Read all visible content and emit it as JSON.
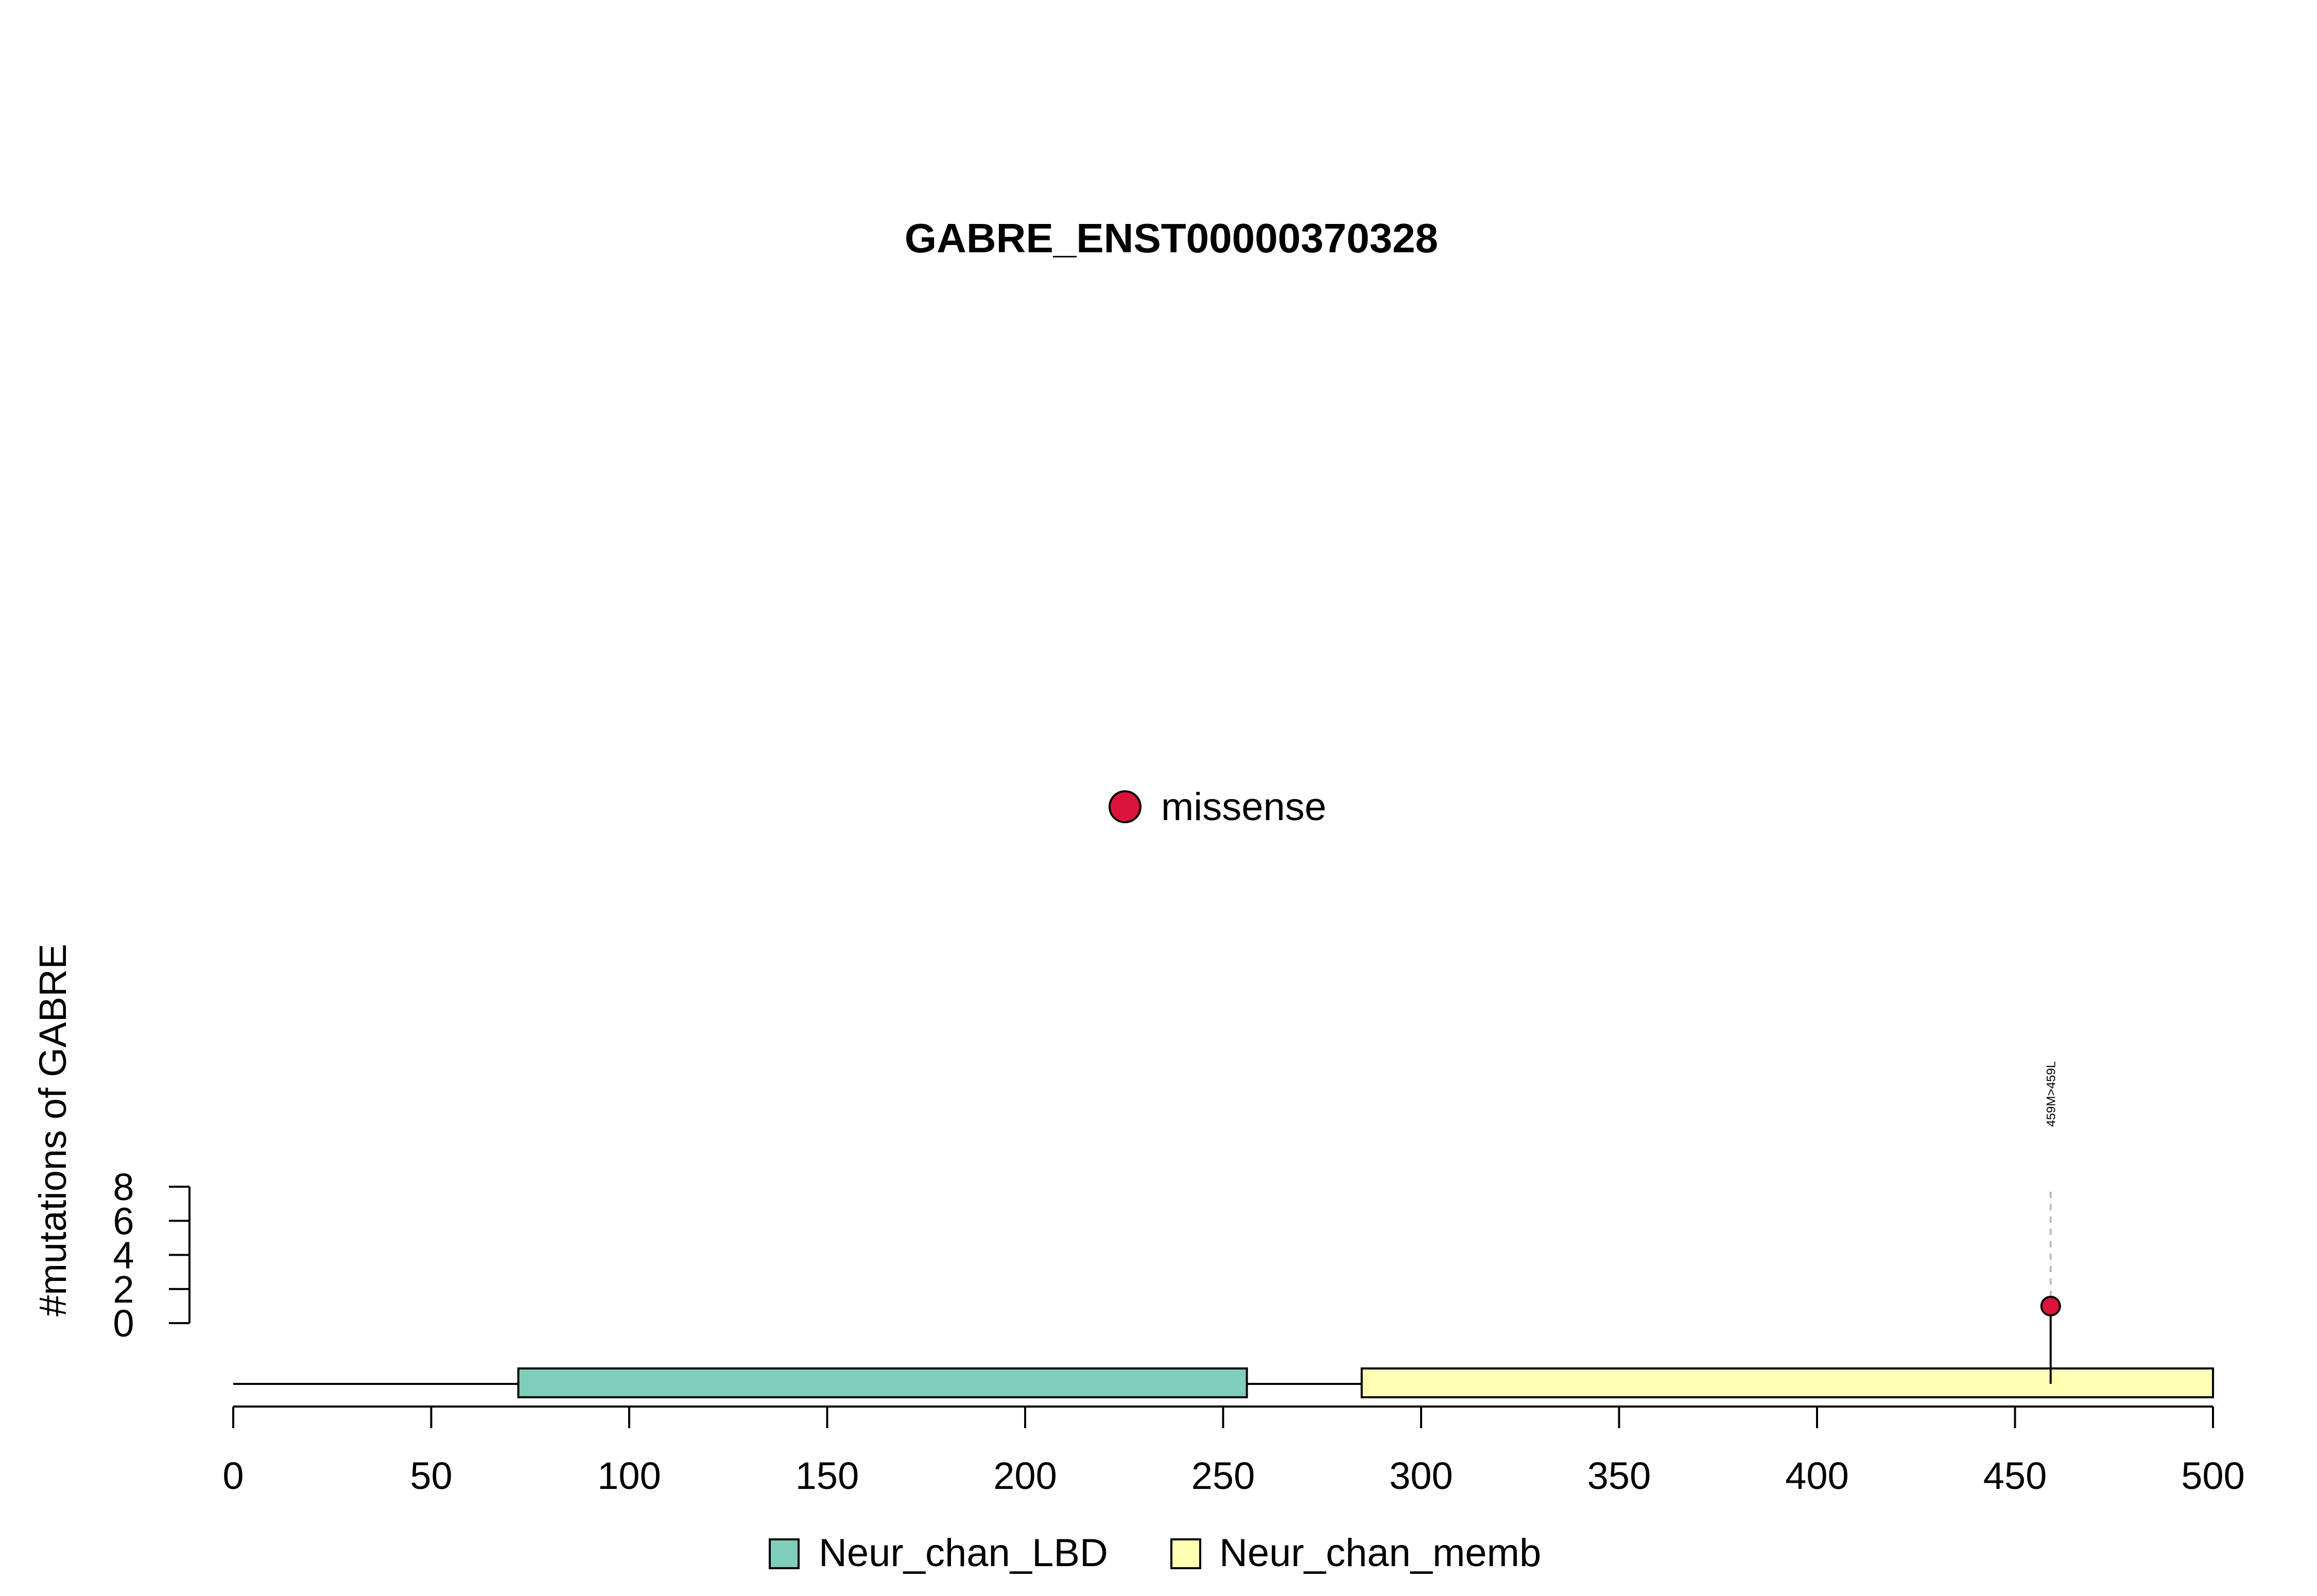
{
  "chart_data": {
    "type": "lollipop",
    "title": "GABRE_ENST00000370328",
    "ylabel": "#mutations of GABRE",
    "xlabel": "",
    "xlim": [
      0,
      500
    ],
    "x_ticks": [
      0,
      50,
      100,
      150,
      200,
      250,
      300,
      350,
      400,
      450,
      500
    ],
    "ylim": [
      0,
      8
    ],
    "y_ticks": [
      0,
      2,
      4,
      6,
      8
    ],
    "protein_length": 500,
    "domains": [
      {
        "name": "Neur_chan_LBD",
        "start": 72,
        "end": 256,
        "color": "#7FCDBB"
      },
      {
        "name": "Neur_chan_memb",
        "start": 285,
        "end": 500,
        "color": "#FFFFB3"
      }
    ],
    "mutations": [
      {
        "position": 459,
        "count": 1,
        "label": "459M>459L",
        "type": "missense"
      }
    ],
    "mutation_types": [
      {
        "name": "missense",
        "color": "#DC143C"
      }
    ],
    "legend": {
      "mutation_legend_position": "top-center",
      "domain_legend_position": "bottom-center"
    }
  }
}
